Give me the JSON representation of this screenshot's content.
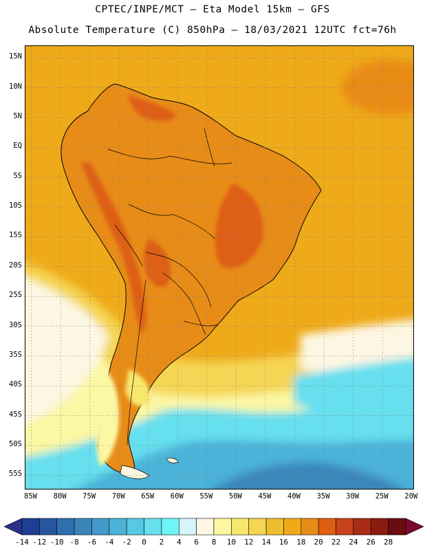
{
  "title": {
    "line1": "CPTEC/INPE/MCT –  Eta Model 15km – GFS",
    "line2": "Absolute Temperature (C) 850hPa – 18/03/2021 12UTC fct=76h"
  },
  "axes": {
    "lat_labels": [
      "15N",
      "10N",
      "5N",
      "EQ",
      "5S",
      "10S",
      "15S",
      "20S",
      "25S",
      "30S",
      "35S",
      "40S",
      "45S",
      "50S",
      "55S"
    ],
    "lat_values": [
      15,
      10,
      5,
      0,
      -5,
      -10,
      -15,
      -20,
      -25,
      -30,
      -35,
      -40,
      -45,
      -50,
      -55
    ],
    "lon_labels": [
      "85W",
      "80W",
      "75W",
      "70W",
      "65W",
      "60W",
      "55W",
      "50W",
      "45W",
      "40W",
      "35W",
      "30W",
      "25W",
      "20W"
    ],
    "lon_values": [
      -85,
      -80,
      -75,
      -70,
      -65,
      -60,
      -55,
      -50,
      -45,
      -40,
      -35,
      -30,
      -25,
      -20
    ],
    "lat_range": [
      -57.5,
      17
    ],
    "lon_range": [
      -86,
      -19.5
    ]
  },
  "colorbar": {
    "labels": [
      "-14",
      "-12",
      "-10",
      "-8",
      "-6",
      "-4",
      "-2",
      "0",
      "2",
      "4",
      "6",
      "8",
      "10",
      "12",
      "14",
      "16",
      "18",
      "20",
      "22",
      "24",
      "26",
      "28"
    ],
    "colors": [
      "#1e3f95",
      "#28559f",
      "#2f6fae",
      "#3a86bb",
      "#4499c8",
      "#4cb2d8",
      "#56c8e4",
      "#66dfee",
      "#6ff5f6",
      "#d6f4fb",
      "#fdf6e2",
      "#fbf7a3",
      "#f7e76e",
      "#f5d553",
      "#efbe2e",
      "#efaa19",
      "#e88c18",
      "#de5e12",
      "#c8421a",
      "#a92c14",
      "#8b1c11",
      "#6b0d10"
    ],
    "under_color": "#2a2f8a",
    "over_color": "#7a0b2e"
  },
  "map": {
    "variable": "Absolute Temperature (C) 850hPa",
    "model": "Eta Model 15km – GFS",
    "date": "18/03/2021 12UTC",
    "forecast": "fct=76h",
    "land_mass": "South America",
    "colors": {
      "ocean_warm": "#efaa19",
      "ocean_mild": "#f5d553",
      "ocean_cool": "#fbf7a3",
      "ocean_cream": "#fdf6e2",
      "ocean_cold": "#66dfee",
      "ocean_colder": "#4cb2d8",
      "ocean_coldest": "#3a86bb",
      "land_hot": "#de5e12",
      "land_warm": "#e88c18",
      "coast": "#000000",
      "grid": "#7a7a7a"
    }
  }
}
